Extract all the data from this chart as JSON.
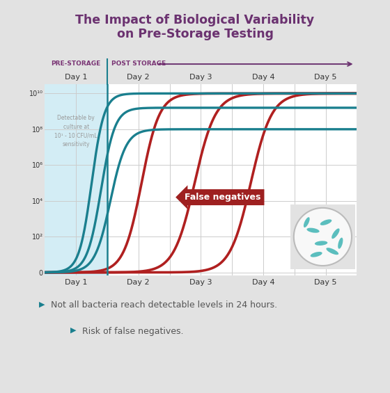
{
  "title_line1": "The Impact of Biological Variability",
  "title_line2": "on Pre-Storage Testing",
  "title_color": "#6b3270",
  "bg_color": "#e2e2e2",
  "plot_bg": "#ffffff",
  "pre_storage_bg": "#c5e8f2",
  "teal_color": "#1a7f8e",
  "red_color": "#b02020",
  "pre_storage_label": "PRE-STORAGE",
  "post_storage_label": "POST STORAGE",
  "label_color": "#7a3575",
  "day_labels": [
    "Day 1",
    "Day 2",
    "Day 3",
    "Day 4",
    "Day 5"
  ],
  "ytick_labels": [
    "0",
    "10²",
    "10⁴",
    "10⁶",
    "10⁸",
    "10¹⁰"
  ],
  "detectable_text": "Detectable by\nculture at\n10¹ - 10 CFU/mL\nsensitivity",
  "false_neg_label": "False negatives",
  "false_neg_bg": "#9e2020",
  "bullet_color": "#1a7f8e",
  "bullet1": "Not all bacteria reach detectable levels in 24 hours.",
  "bullet2": "Risk of false negatives.",
  "text_color": "#555555",
  "arrow_color": "#6b3270"
}
